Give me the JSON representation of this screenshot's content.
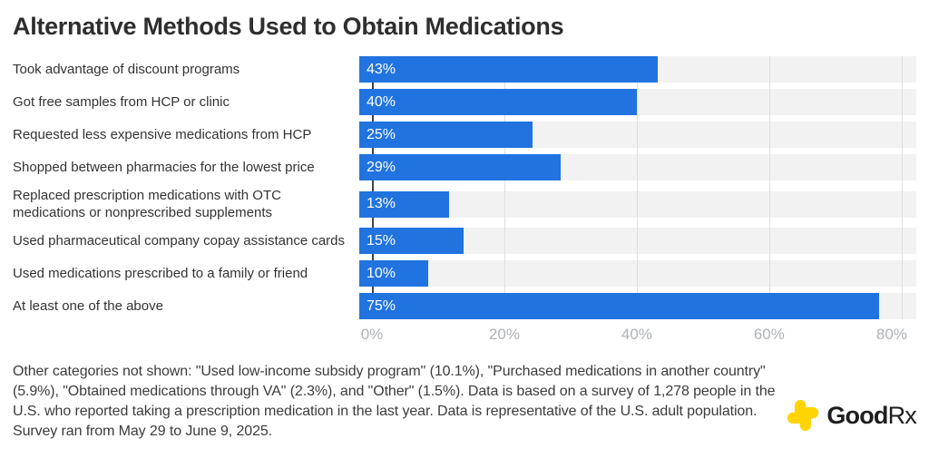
{
  "title": "Alternative Methods Used to Obtain Medications",
  "chart_data": {
    "type": "bar",
    "orientation": "horizontal",
    "categories": [
      "Took advantage of discount programs",
      "Got free samples from HCP or clinic",
      "Requested less expensive medications from HCP",
      "Shopped between pharmacies for the lowest price",
      "Replaced prescription medications with OTC medications or nonprescribed supplements",
      "Used pharmaceutical company copay assistance cards",
      "Used medications prescribed to a family or friend",
      "At least one of the above"
    ],
    "values": [
      43,
      40,
      25,
      29,
      13,
      15,
      10,
      75
    ],
    "value_labels": [
      "43%",
      "40%",
      "25%",
      "29%",
      "13%",
      "15%",
      "10%",
      "75%"
    ],
    "x_ticks": [
      "0%",
      "20%",
      "40%",
      "60%",
      "80%"
    ],
    "x_tick_values": [
      0,
      20,
      40,
      60,
      80
    ],
    "axis_max": 80.3,
    "xlabel": "",
    "ylabel": "",
    "grid": "vertical gridlines at 20% intervals",
    "legend": "none"
  },
  "footnote": {
    "lines": [
      "Other categories not shown: \"Used low-income subsidy program\" (10.1%), \"Purchased medications in another country\" (5.9%), \"Obtained medications through VA\" (2.3%), and \"Other\" (1.5%). Data is based on a survey of 1,278 people in the U.S. who reported taking a prescription medication in the last year. Data is representative of the U.S. adult population. Survey ran from May 29 to June 9, 2025."
    ]
  },
  "logo": {
    "brand_bold": "Good",
    "brand_regular": "Rx",
    "icon": "goodrx-cross-icon"
  },
  "colors": {
    "bar_blue": "#2173df",
    "track_gray": "#f2f2f2",
    "gridline_gray": "#dedede",
    "axis_dark": "#424242",
    "title_text": "#2e2e2e",
    "label_text": "#333333",
    "tick_text": "#aeb2b6",
    "footnote_text": "#3c3c3c",
    "logo_yellow": "#ffd400",
    "bar_value_text": "#ffffff"
  }
}
